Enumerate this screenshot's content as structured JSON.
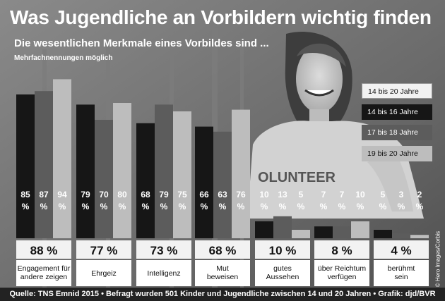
{
  "header": {
    "title": "Was Jugendliche an Vorbildern wichtig finden",
    "subtitle": "Die wesentlichen Merkmale eines Vorbildes sind ...",
    "note": "Mehrfachnennungen möglich"
  },
  "photo": {
    "shirt_text": "OLUNTEER"
  },
  "credit": "© Hero Images/Corbis",
  "source": "Quelle: TNS Emnid 2015 • Befragt wurden 501 Kinder und Jugendliche zwischen 14 und 20 Jahren • Grafik: djd/BVR",
  "colors": {
    "s1": "#161616",
    "s2": "#5c5c5c",
    "s3": "#bdbdbd",
    "total_box": "#f2f2f2"
  },
  "chart_data": {
    "type": "bar",
    "categories": [
      "Engagement für andere zeigen",
      "Ehrgeiz",
      "Intelligenz",
      "Mut beweisen",
      "gutes Aussehen",
      "über Reichtum verfügen",
      "berühmt sein"
    ],
    "totals": [
      "88 %",
      "77 %",
      "73 %",
      "68 %",
      "10 %",
      "8 %",
      "4 %"
    ],
    "legend": [
      "14 bis 20 Jahre",
      "14 bis 16 Jahre",
      "17 bis 18 Jahre",
      "19 bis 20 Jahre"
    ],
    "series": [
      {
        "name": "14 bis 16 Jahre",
        "values": [
          85,
          79,
          68,
          66,
          10,
          7,
          5
        ]
      },
      {
        "name": "17 bis 18 Jahre",
        "values": [
          87,
          70,
          79,
          63,
          13,
          7,
          3
        ]
      },
      {
        "name": "19 bis 20 Jahre",
        "values": [
          94,
          80,
          75,
          76,
          5,
          10,
          2
        ]
      }
    ],
    "unit": "%",
    "ylim": [
      0,
      100
    ]
  }
}
